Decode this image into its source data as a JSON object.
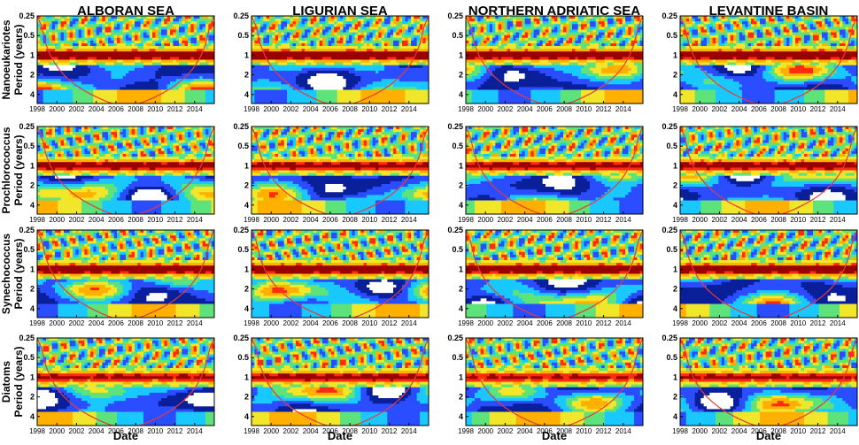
{
  "columns": [
    "ALBORAN SEA",
    "LIGURIAN SEA",
    "NORTHERN ADRIATIC SEA",
    "LEVANTINE BASIN"
  ],
  "rows": [
    "Nanoeukariotes",
    "Prochlorococcus",
    "Synechococcus",
    "Diatoms"
  ],
  "ylabel": "Period (years)",
  "xlabel": "Date",
  "colors": [
    "#ffffff",
    "#0a1f9a",
    "#2a4dff",
    "#19c8ff",
    "#5ee37b",
    "#f2e62a",
    "#ffb000",
    "#ff2a10",
    "#9b0000"
  ],
  "coi_color": "#e53b3b",
  "chart_data": [
    {
      "type": "heatmap",
      "description_free": true,
      "x_ticks": [
        1998,
        2000,
        2002,
        2004,
        2006,
        2008,
        2010,
        2012,
        2014
      ],
      "xlim": [
        1998,
        2016
      ],
      "y_ticks": [
        0.25,
        0.5,
        1,
        2,
        4
      ],
      "y_scale": "log2",
      "ylim": [
        0.25,
        5.5
      ],
      "panels": [
        {
          "row": "Nanoeukariotes",
          "col": "ALBORAN SEA",
          "annual_band_strength": 0.95
        },
        {
          "row": "Nanoeukariotes",
          "col": "LIGURIAN SEA",
          "annual_band_strength": 0.95
        },
        {
          "row": "Nanoeukariotes",
          "col": "NORTHERN ADRIATIC SEA",
          "annual_band_strength": 0.9
        },
        {
          "row": "Nanoeukariotes",
          "col": "LEVANTINE BASIN",
          "annual_band_strength": 0.95
        },
        {
          "row": "Prochlorococcus",
          "col": "ALBORAN SEA",
          "annual_band_strength": 0.85
        },
        {
          "row": "Prochlorococcus",
          "col": "LIGURIAN SEA",
          "annual_band_strength": 0.8
        },
        {
          "row": "Prochlorococcus",
          "col": "NORTHERN ADRIATIC SEA",
          "annual_band_strength": 0.8
        },
        {
          "row": "Prochlorococcus",
          "col": "LEVANTINE BASIN",
          "annual_band_strength": 0.85
        },
        {
          "row": "Synechococcus",
          "col": "ALBORAN SEA",
          "annual_band_strength": 0.95
        },
        {
          "row": "Synechococcus",
          "col": "LIGURIAN SEA",
          "annual_band_strength": 0.95
        },
        {
          "row": "Synechococcus",
          "col": "NORTHERN ADRIATIC SEA",
          "annual_band_strength": 0.95
        },
        {
          "row": "Synechococcus",
          "col": "LEVANTINE BASIN",
          "annual_band_strength": 0.95
        },
        {
          "row": "Diatoms",
          "col": "ALBORAN SEA",
          "annual_band_strength": 0.75
        },
        {
          "row": "Diatoms",
          "col": "LIGURIAN SEA",
          "annual_band_strength": 0.8
        },
        {
          "row": "Diatoms",
          "col": "NORTHERN ADRIATIC SEA",
          "annual_band_strength": 0.7
        },
        {
          "row": "Diatoms",
          "col": "LEVANTINE BASIN",
          "annual_band_strength": 0.75
        }
      ]
    }
  ]
}
